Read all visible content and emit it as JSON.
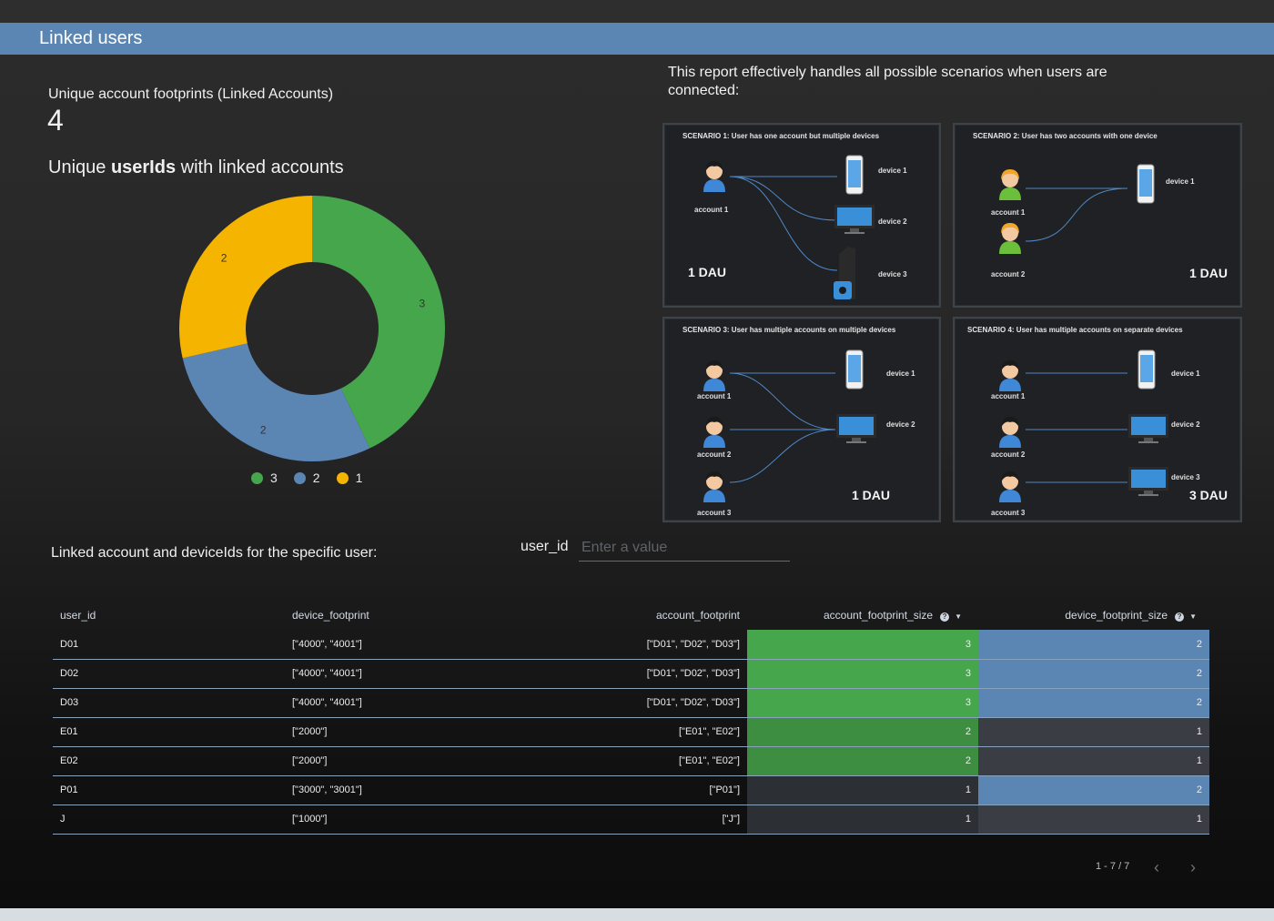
{
  "header": {
    "title": "Linked users"
  },
  "metric": {
    "label": "Unique account footprints (Linked Accounts)",
    "value": "4"
  },
  "donut": {
    "title_prefix": "Unique ",
    "title_bold": "userIds",
    "title_suffix": " with linked accounts"
  },
  "chart_data": {
    "type": "pie",
    "donut": true,
    "categories": [
      "3",
      "2",
      "1"
    ],
    "values": [
      3,
      2,
      2
    ],
    "colors": [
      "#46a64c",
      "#5b86b4",
      "#f4b400"
    ],
    "legend_position": "bottom",
    "slice_labels": [
      "3",
      "2",
      "2"
    ]
  },
  "report": {
    "text": "This report effectively handles all possible scenarios when users are connected:"
  },
  "scenarios": [
    {
      "title": "SCENARIO 1: User has one account but multiple devices",
      "dau": "1 DAU",
      "accounts": [
        "account 1"
      ],
      "devices": [
        "device 1",
        "device 2",
        "device 3"
      ]
    },
    {
      "title": "SCENARIO 2: User has two accounts with one device",
      "dau": "1 DAU",
      "accounts": [
        "account 1",
        "account 2"
      ],
      "devices": [
        "device 1"
      ]
    },
    {
      "title": "SCENARIO 3: User has multiple accounts on multiple devices",
      "dau": "1 DAU",
      "accounts": [
        "account 1",
        "account 2",
        "account 3"
      ],
      "devices": [
        "device 1",
        "device 2"
      ]
    },
    {
      "title": "SCENARIO 4: User has multiple accounts on separate devices",
      "dau": "3 DAU",
      "accounts": [
        "account 1",
        "account 2",
        "account 3"
      ],
      "devices": [
        "device 1",
        "device 2",
        "device 3"
      ]
    }
  ],
  "filter": {
    "label": "Linked account and deviceIds for the specific user:",
    "field_label": "user_id",
    "placeholder": "Enter a value",
    "value": ""
  },
  "table": {
    "columns": [
      "user_id",
      "device_footprint",
      "account_footprint",
      "account_footprint_size",
      "device_footprint_size"
    ],
    "rows": [
      {
        "user_id": "D01",
        "device_footprint": "[\"4000\", \"4001\"]",
        "account_footprint": "[\"D01\", \"D02\", \"D03\"]",
        "account_footprint_size": "3",
        "device_footprint_size": "2"
      },
      {
        "user_id": "D02",
        "device_footprint": "[\"4000\", \"4001\"]",
        "account_footprint": "[\"D01\", \"D02\", \"D03\"]",
        "account_footprint_size": "3",
        "device_footprint_size": "2"
      },
      {
        "user_id": "D03",
        "device_footprint": "[\"4000\", \"4001\"]",
        "account_footprint": "[\"D01\", \"D02\", \"D03\"]",
        "account_footprint_size": "3",
        "device_footprint_size": "2"
      },
      {
        "user_id": "E01",
        "device_footprint": "[\"2000\"]",
        "account_footprint": "[\"E01\", \"E02\"]",
        "account_footprint_size": "2",
        "device_footprint_size": "1"
      },
      {
        "user_id": "E02",
        "device_footprint": "[\"2000\"]",
        "account_footprint": "[\"E01\", \"E02\"]",
        "account_footprint_size": "2",
        "device_footprint_size": "1"
      },
      {
        "user_id": "P01",
        "device_footprint": "[\"3000\", \"3001\"]",
        "account_footprint": "[\"P01\"]",
        "account_footprint_size": "1",
        "device_footprint_size": "2"
      },
      {
        "user_id": "J",
        "device_footprint": "[\"1000\"]",
        "account_footprint": "[\"J\"]",
        "account_footprint_size": "1",
        "device_footprint_size": "1"
      }
    ]
  },
  "pager": {
    "text": "1 - 7 / 7",
    "prev_icon": "chevron-left-icon",
    "next_icon": "chevron-right-icon"
  }
}
